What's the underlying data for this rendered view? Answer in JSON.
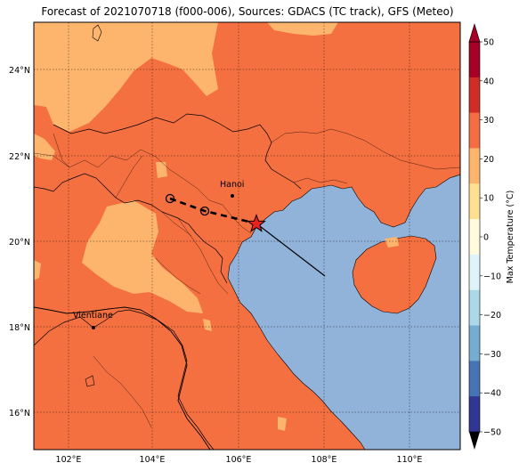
{
  "title": "Forecast of 2021070718 (f000-006), Sources: GDACS (TC track), GFS (Meteo)",
  "map": {
    "lat_labels": [
      "24°N",
      "22°N",
      "20°N",
      "18°N",
      "16°N"
    ],
    "lon_labels": [
      "102°E",
      "104°E",
      "106°E",
      "108°E",
      "110°E"
    ],
    "cities": [
      {
        "name": "Hanoi"
      },
      {
        "name": "Vientiane"
      }
    ],
    "track_marker_symbol": "star",
    "colors": {
      "ocean": "#91b2d9",
      "temp_20_30": "#f47040",
      "temp_10_20": "#fdb56e",
      "track_marker_fill": "#e8221f"
    }
  },
  "colorbar": {
    "label": "Max Temperature (°C)",
    "ticks": [
      "50",
      "40",
      "30",
      "20",
      "10",
      "0",
      "−10",
      "−20",
      "−30",
      "−40",
      "−50"
    ],
    "colors": [
      "#a50026",
      "#d12d27",
      "#f46d43",
      "#fdb56e",
      "#fee090",
      "#fffbdc",
      "#e0f3f8",
      "#abd9e9",
      "#74add1",
      "#4575b4",
      "#313695"
    ]
  }
}
